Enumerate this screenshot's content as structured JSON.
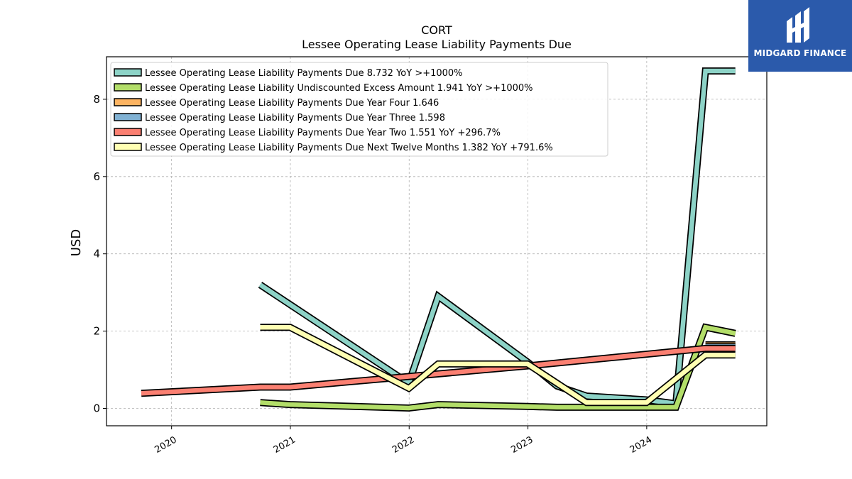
{
  "chart_data": {
    "type": "line",
    "title": "CORT",
    "subtitle": "Lessee Operating Lease Liability Payments Due",
    "ylabel": "USD",
    "xlabel": "",
    "ylim": [
      -0.45,
      9.1
    ],
    "yticks": [
      0,
      2,
      4,
      6,
      8
    ],
    "xlim": [
      "2019-06-15",
      "2025-01-05"
    ],
    "xticks": [
      "2020",
      "2021",
      "2022",
      "2023",
      "2024"
    ],
    "grid": true,
    "legend_position": "top-left",
    "series": [
      {
        "name": "Lessee Operating Lease Liability Payments Due",
        "legend": "Lessee Operating Lease Liability Payments Due  8.732 YoY >+1000%",
        "color": "#8dd3c7",
        "points": [
          [
            "2020-09-30",
            3.2
          ],
          [
            "2021-12-31",
            0.65
          ],
          [
            "2022-03-31",
            2.9
          ],
          [
            "2022-12-31",
            1.2
          ],
          [
            "2023-03-31",
            0.58
          ],
          [
            "2023-06-30",
            0.32
          ],
          [
            "2023-12-31",
            0.22
          ],
          [
            "2024-03-31",
            0.12
          ],
          [
            "2024-06-30",
            8.732
          ],
          [
            "2024-09-30",
            8.732
          ]
        ]
      },
      {
        "name": "Lessee Operating Lease Liability Undiscounted Excess Amount",
        "legend": "Lessee Operating Lease Liability Undiscounted Excess Amount  1.941 YoY >+1000%",
        "color": "#b3de69",
        "points": [
          [
            "2020-09-30",
            0.15
          ],
          [
            "2020-12-31",
            0.1
          ],
          [
            "2021-12-31",
            0.01
          ],
          [
            "2022-03-31",
            0.1
          ],
          [
            "2022-12-31",
            0.05
          ],
          [
            "2023-03-31",
            0.03
          ],
          [
            "2023-12-31",
            0.03
          ],
          [
            "2024-03-31",
            0.03
          ],
          [
            "2024-06-30",
            2.1
          ],
          [
            "2024-09-30",
            1.941
          ]
        ]
      },
      {
        "name": "Lessee Operating Lease Liability Payments Due Year Four",
        "legend": "Lessee Operating Lease Liability Payments Due Year Four  1.646",
        "color": "#fdb462",
        "points": [
          [
            "2024-06-30",
            1.646
          ],
          [
            "2024-09-30",
            1.646
          ]
        ]
      },
      {
        "name": "Lessee Operating Lease Liability Payments Due Year Three",
        "legend": "Lessee Operating Lease Liability Payments Due Year Three  1.598",
        "color": "#80b1d3",
        "points": [
          [
            "2024-06-30",
            1.598
          ],
          [
            "2024-09-30",
            1.598
          ]
        ]
      },
      {
        "name": "Lessee Operating Lease Liability Payments Due Year Two",
        "legend": "Lessee Operating Lease Liability Payments Due Year Two  1.551 YoY +296.7%",
        "color": "#fb8072",
        "points": [
          [
            "2019-09-30",
            0.39
          ],
          [
            "2020-09-30",
            0.55
          ],
          [
            "2020-12-31",
            0.55
          ],
          [
            "2022-12-31",
            1.1
          ],
          [
            "2024-06-30",
            1.551
          ],
          [
            "2024-09-30",
            1.551
          ]
        ]
      },
      {
        "name": "Lessee Operating Lease Liability Payments Due Next Twelve Months",
        "legend": "Lessee Operating Lease Liability Payments Due Next Twelve Months  1.382 YoY +791.6%",
        "color": "#ffffb3",
        "points": [
          [
            "2020-09-30",
            2.1
          ],
          [
            "2020-12-31",
            2.1
          ],
          [
            "2021-12-31",
            0.52
          ],
          [
            "2022-03-31",
            1.15
          ],
          [
            "2022-12-31",
            1.15
          ],
          [
            "2023-06-30",
            0.15
          ],
          [
            "2023-12-31",
            0.15
          ],
          [
            "2024-06-30",
            1.382
          ],
          [
            "2024-09-30",
            1.382
          ]
        ]
      }
    ]
  },
  "branding": {
    "logo_text": "MIDGARD FINANCE",
    "logo_color": "#2b5aab"
  }
}
